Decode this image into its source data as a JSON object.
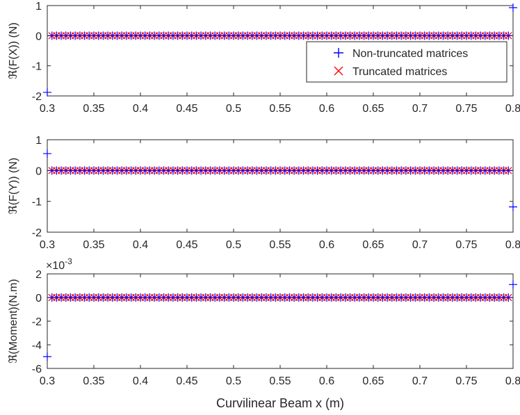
{
  "chart_data": [
    {
      "type": "scatter",
      "ylabel": "ℜ(F(X)) (N)",
      "xlim": [
        0.3,
        0.8
      ],
      "ylim": [
        -2,
        1
      ],
      "xticks": [
        "0.3",
        "0.35",
        "0.4",
        "0.45",
        "0.5",
        "0.55",
        "0.6",
        "0.65",
        "0.7",
        "0.75",
        "0.8"
      ],
      "yticks": [
        "-2",
        "-1",
        "0",
        "1"
      ],
      "exponent": "",
      "legend": {
        "position": "right",
        "entries": [
          {
            "label": "Non-truncated matrices",
            "marker": "+",
            "color": "#0000ff"
          },
          {
            "label": "Truncated matrices",
            "marker": "x",
            "color": "#ff0000"
          }
        ]
      },
      "series": [
        {
          "name": "Non-truncated matrices",
          "marker": "+",
          "color": "#0000ff",
          "x_range": [
            0.3,
            0.8
          ],
          "n_points": 101,
          "interior_value": 0,
          "endpoints": {
            "first": -1.88,
            "last": 0.93
          }
        },
        {
          "name": "Truncated matrices",
          "marker": "x",
          "color": "#ff0000",
          "x_range": [
            0.305,
            0.795
          ],
          "n_points": 99,
          "interior_value": 0
        }
      ]
    },
    {
      "type": "scatter",
      "ylabel": "ℜ(F(Y)) (N)",
      "xlim": [
        0.3,
        0.8
      ],
      "ylim": [
        -2,
        1
      ],
      "xticks": [
        "0.3",
        "0.35",
        "0.4",
        "0.45",
        "0.5",
        "0.55",
        "0.6",
        "0.65",
        "0.7",
        "0.75",
        "0.8"
      ],
      "yticks": [
        "-2",
        "-1",
        "0",
        "1"
      ],
      "exponent": "",
      "series": [
        {
          "name": "Non-truncated matrices",
          "marker": "+",
          "color": "#0000ff",
          "x_range": [
            0.3,
            0.8
          ],
          "n_points": 101,
          "interior_value": 0,
          "endpoints": {
            "first": 0.55,
            "last": -1.18
          }
        },
        {
          "name": "Truncated matrices",
          "marker": "x",
          "color": "#ff0000",
          "x_range": [
            0.305,
            0.795
          ],
          "n_points": 99,
          "interior_value": 0
        }
      ]
    },
    {
      "type": "scatter",
      "ylabel": "ℜ(Moment)(N.m)",
      "xlabel": "Curvilinear Beam x (m)",
      "xlim": [
        0.3,
        0.8
      ],
      "ylim": [
        -6,
        2
      ],
      "xticks": [
        "0.3",
        "0.35",
        "0.4",
        "0.45",
        "0.5",
        "0.55",
        "0.6",
        "0.65",
        "0.7",
        "0.75",
        "0.8"
      ],
      "yticks": [
        "-6",
        "-4",
        "-2",
        "0",
        "2"
      ],
      "exponent": "×10",
      "exponent_power": "-3",
      "series": [
        {
          "name": "Non-truncated matrices",
          "marker": "+",
          "color": "#0000ff",
          "x_range": [
            0.3,
            0.8
          ],
          "n_points": 101,
          "interior_value": 0,
          "endpoints": {
            "first": -5.0,
            "last": 1.1
          }
        },
        {
          "name": "Truncated matrices",
          "marker": "x",
          "color": "#ff0000",
          "x_range": [
            0.305,
            0.795
          ],
          "n_points": 99,
          "interior_value": 0
        }
      ]
    }
  ]
}
